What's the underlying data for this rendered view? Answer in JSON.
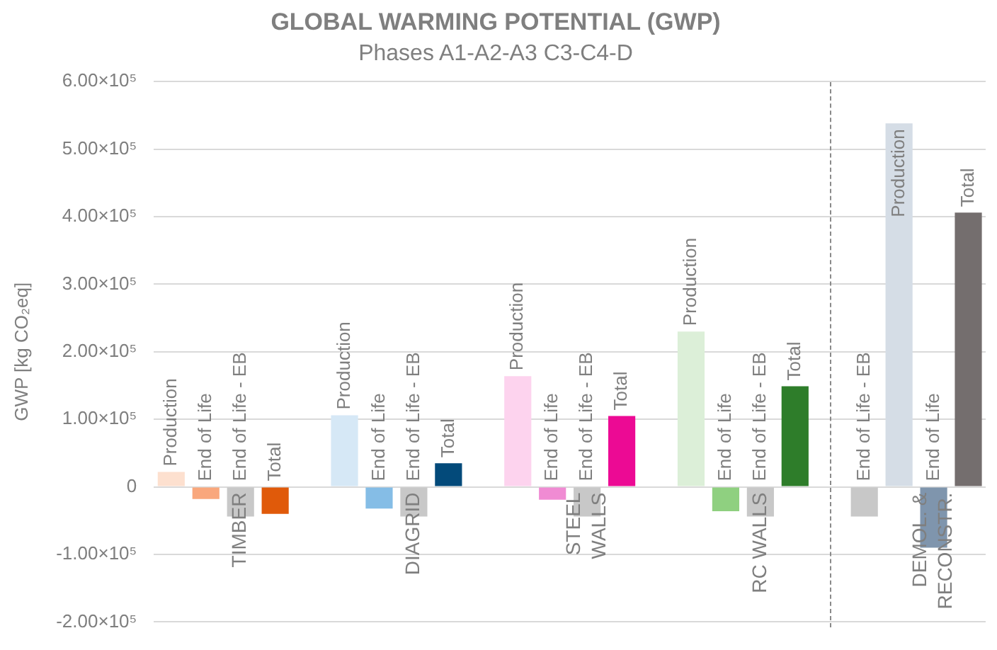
{
  "chart_data": {
    "type": "bar",
    "title": "GLOBAL WARMING POTENTIAL (GWP)",
    "subtitle": "Phases A1-A2-A3 C3-C4-D",
    "ylabel": "GWP [kg CO₂eq]",
    "categories": [
      null,
      null,
      "TIMBER",
      null,
      null,
      null,
      null,
      "DIAGRID",
      null,
      null,
      null,
      null,
      "STEEL WALLS",
      null,
      null,
      null,
      null,
      "RC WALLS",
      null,
      null,
      null,
      null,
      "DEMOL. & RECONSTR.",
      null
    ],
    "series": [
      {
        "name": "Production",
        "values": [
          22000,
          null,
          null,
          null,
          null,
          106000,
          null,
          null,
          null,
          null,
          164000,
          null,
          null,
          null,
          null,
          230000,
          null,
          null,
          null,
          null,
          null,
          538000,
          null,
          null
        ],
        "colors": [
          "#fde0cf",
          null,
          null,
          null,
          null,
          "#d6e8f6",
          null,
          null,
          null,
          null,
          "#fdd3ee",
          null,
          null,
          null,
          null,
          "#dcefd8",
          null,
          null,
          null,
          null,
          null,
          "#d5dde6",
          null,
          null
        ]
      },
      {
        "name": "End of Life",
        "values": [
          null,
          -18000,
          null,
          null,
          null,
          null,
          -32000,
          null,
          null,
          null,
          null,
          -19000,
          null,
          null,
          null,
          null,
          -36000,
          null,
          null,
          null,
          null,
          null,
          -90000,
          null
        ],
        "colors": [
          null,
          "#f9a77c",
          null,
          null,
          null,
          null,
          "#85bde6",
          null,
          null,
          null,
          null,
          "#f08bd3",
          null,
          null,
          null,
          null,
          "#8fd080",
          null,
          null,
          null,
          null,
          null,
          "#7f95ad",
          null
        ]
      },
      {
        "name": "End of Life - EB",
        "values": [
          null,
          null,
          -44000,
          null,
          null,
          null,
          null,
          -44000,
          null,
          null,
          null,
          null,
          -44000,
          null,
          null,
          null,
          null,
          -44000,
          null,
          null,
          -44000,
          null,
          null,
          null
        ],
        "colors": [
          null,
          null,
          "#c8c8c8",
          null,
          null,
          null,
          null,
          "#c8c8c8",
          null,
          null,
          null,
          null,
          "#c8c8c8",
          null,
          null,
          null,
          null,
          "#c8c8c8",
          null,
          null,
          "#c8c8c8",
          null,
          null,
          null
        ]
      },
      {
        "name": "Total",
        "values": [
          null,
          null,
          null,
          -40000,
          null,
          null,
          null,
          null,
          35000,
          null,
          null,
          null,
          null,
          105000,
          null,
          null,
          null,
          null,
          149000,
          null,
          null,
          null,
          null,
          406000
        ],
        "colors": [
          null,
          null,
          null,
          "#e05a0a",
          null,
          null,
          null,
          null,
          "#034a7a",
          null,
          null,
          null,
          null,
          "#ec0a94",
          null,
          null,
          null,
          null,
          "#2e7d2a",
          null,
          null,
          null,
          null,
          "#746e6e"
        ]
      }
    ],
    "ylim": [
      -200000,
      600000
    ],
    "yticks": [
      {
        "value": -200000,
        "label": "-2.00×10⁵"
      },
      {
        "value": -100000,
        "label": "-1.00×10⁵"
      },
      0,
      {
        "value": 100000,
        "label": "1.00×10⁵"
      },
      {
        "value": 200000,
        "label": "2.00×10⁵"
      },
      {
        "value": 300000,
        "label": "3.00×10⁵"
      },
      {
        "value": 400000,
        "label": "4.00×10⁵"
      },
      {
        "value": 500000,
        "label": "5.00×10⁵"
      },
      {
        "value": 600000,
        "label": "6.00×10⁵"
      }
    ],
    "grid": "y",
    "legend": false
  }
}
